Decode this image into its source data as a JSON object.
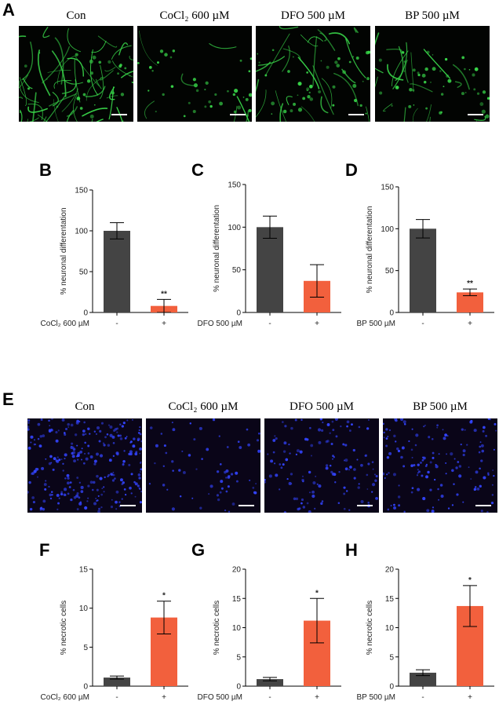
{
  "panels": {
    "A": {
      "letter": "A",
      "labels": [
        "Con",
        "CoCl₂ 600 µM",
        "DFO 500 µM",
        "BP 500 µM"
      ]
    },
    "E": {
      "letter": "E",
      "labels": [
        "Con",
        "CoCl₂ 600 µM",
        "DFO 500 µM",
        "BP 500 µM"
      ]
    }
  },
  "colors": {
    "control_bar": "#444444",
    "treated_bar": "#f2603d",
    "neurite_green": "#39d84a",
    "nuclei_blue": "#3344ff"
  },
  "chart_data": [
    {
      "id": "B",
      "letter": "B",
      "type": "bar",
      "ylabel": "% neuronal differentation",
      "ylim": [
        0,
        150
      ],
      "yticks": [
        0,
        50,
        100,
        150
      ],
      "categories": [
        "-",
        "+"
      ],
      "treatment": "CoCl₂ 600 µM",
      "values": [
        100,
        8
      ],
      "errors": [
        10,
        8
      ],
      "significance": [
        "",
        "**"
      ]
    },
    {
      "id": "C",
      "letter": "C",
      "type": "bar",
      "ylabel": "% neuronal differentation",
      "ylim": [
        0,
        150
      ],
      "yticks": [
        0,
        50,
        100,
        150
      ],
      "categories": [
        "-",
        "+"
      ],
      "treatment": "DFO 500 µM",
      "values": [
        100,
        37
      ],
      "errors": [
        13,
        19
      ],
      "significance": [
        "",
        ""
      ]
    },
    {
      "id": "D",
      "letter": "D",
      "type": "bar",
      "ylabel": "% neuronal differentation",
      "ylim": [
        0,
        150
      ],
      "yticks": [
        0,
        50,
        100,
        150
      ],
      "categories": [
        "-",
        "+"
      ],
      "treatment": "BP 500 µM",
      "values": [
        100,
        24
      ],
      "errors": [
        11,
        4
      ],
      "significance": [
        "",
        "**"
      ]
    },
    {
      "id": "F",
      "letter": "F",
      "type": "bar",
      "ylabel": "% necrotic cells",
      "ylim": [
        0,
        15
      ],
      "yticks": [
        0,
        5,
        10,
        15
      ],
      "categories": [
        "-",
        "+"
      ],
      "treatment": "CoCl₂ 600 µM",
      "values": [
        1.1,
        8.8
      ],
      "errors": [
        0.2,
        2.1
      ],
      "significance": [
        "",
        "*"
      ]
    },
    {
      "id": "G",
      "letter": "G",
      "type": "bar",
      "ylabel": "% necrotic cells",
      "ylim": [
        0,
        20
      ],
      "yticks": [
        0,
        5,
        10,
        15,
        20
      ],
      "categories": [
        "-",
        "+"
      ],
      "treatment": "DFO 500 µM",
      "values": [
        1.2,
        11.2
      ],
      "errors": [
        0.3,
        3.8
      ],
      "significance": [
        "",
        "*"
      ]
    },
    {
      "id": "H",
      "letter": "H",
      "type": "bar",
      "ylabel": "% necrotic cells",
      "ylim": [
        0,
        20
      ],
      "yticks": [
        0,
        5,
        10,
        15,
        20
      ],
      "categories": [
        "-",
        "+"
      ],
      "treatment": "BP 500 µM",
      "values": [
        2.3,
        13.7
      ],
      "errors": [
        0.5,
        3.5
      ],
      "significance": [
        "",
        "*"
      ]
    }
  ]
}
